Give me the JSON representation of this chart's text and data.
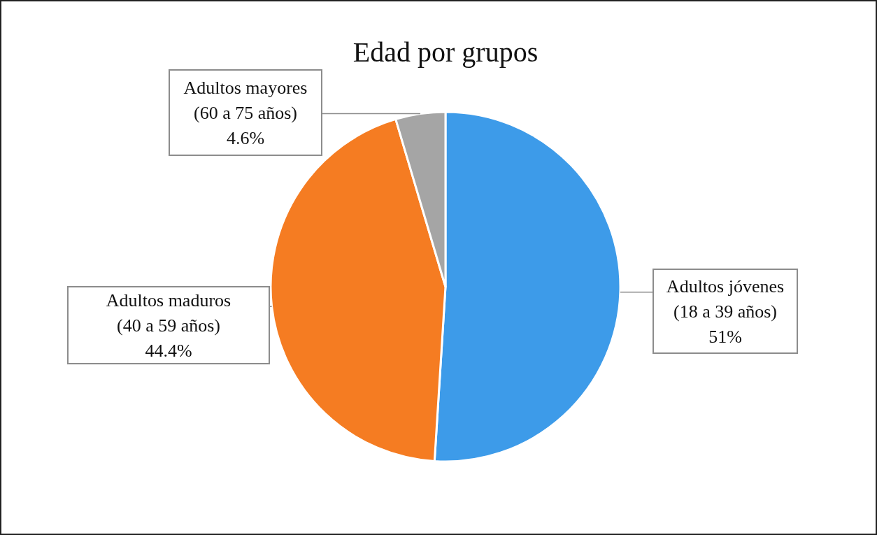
{
  "chart_data": {
    "type": "pie",
    "title": "Edad por grupos",
    "categories": [
      "Adultos jóvenes\n(18 a 39 años)",
      "Adultos maduros\n(40 a 59 años)",
      "Adultos mayores\n(60 a 75 años)"
    ],
    "values": [
      51,
      44.4,
      4.6
    ],
    "colors": [
      "#3d9be9",
      "#f57c22",
      "#a5a5a5"
    ],
    "value_labels": [
      "51%",
      "44.4%",
      "4.6%"
    ]
  }
}
